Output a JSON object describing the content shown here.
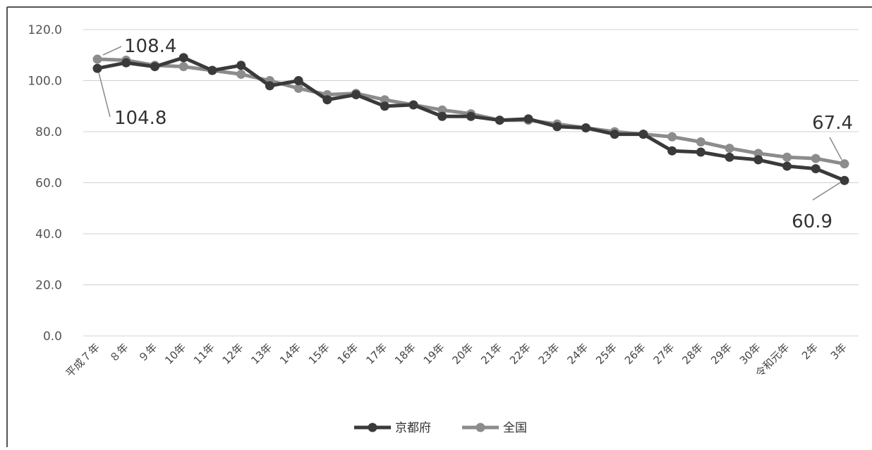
{
  "chart_data": {
    "type": "line",
    "categories": [
      "平成７年",
      "８年",
      "９年",
      "10年",
      "11年",
      "12年",
      "13年",
      "14年",
      "15年",
      "16年",
      "17年",
      "18年",
      "19年",
      "20年",
      "21年",
      "22年",
      "23年",
      "24年",
      "25年",
      "26年",
      "27年",
      "28年",
      "29年",
      "30年",
      "令和元年",
      "2年",
      "3年"
    ],
    "series": [
      {
        "name": "京都府",
        "color": "#3a3a3a",
        "values": [
          104.8,
          107.0,
          105.5,
          109.0,
          104.0,
          106.0,
          98.0,
          100.0,
          92.5,
          94.5,
          90.0,
          90.5,
          86.0,
          86.0,
          84.5,
          85.0,
          82.0,
          81.5,
          79.0,
          79.0,
          72.5,
          72.0,
          70.0,
          69.0,
          66.5,
          65.5,
          60.9
        ]
      },
      {
        "name": "全国",
        "color": "#8c8c8c",
        "values": [
          108.4,
          108.0,
          106.0,
          105.5,
          104.0,
          102.5,
          100.0,
          97.0,
          94.5,
          95.0,
          92.5,
          90.5,
          88.5,
          87.0,
          84.5,
          84.5,
          83.0,
          81.5,
          80.0,
          79.0,
          78.0,
          76.0,
          73.5,
          71.5,
          70.0,
          69.5,
          67.4
        ]
      }
    ],
    "ylim": [
      0,
      120
    ],
    "yticks": [
      "0.0",
      "20.0",
      "40.0",
      "60.0",
      "80.0",
      "100.0",
      "120.0"
    ],
    "grid": true,
    "legend_position": "bottom",
    "annotations": [
      {
        "text": "108.4",
        "series": "全国",
        "index": 0
      },
      {
        "text": "104.8",
        "series": "京都府",
        "index": 0
      },
      {
        "text": "67.4",
        "series": "全国",
        "index": 26
      },
      {
        "text": "60.9",
        "series": "京都府",
        "index": 26
      }
    ]
  }
}
